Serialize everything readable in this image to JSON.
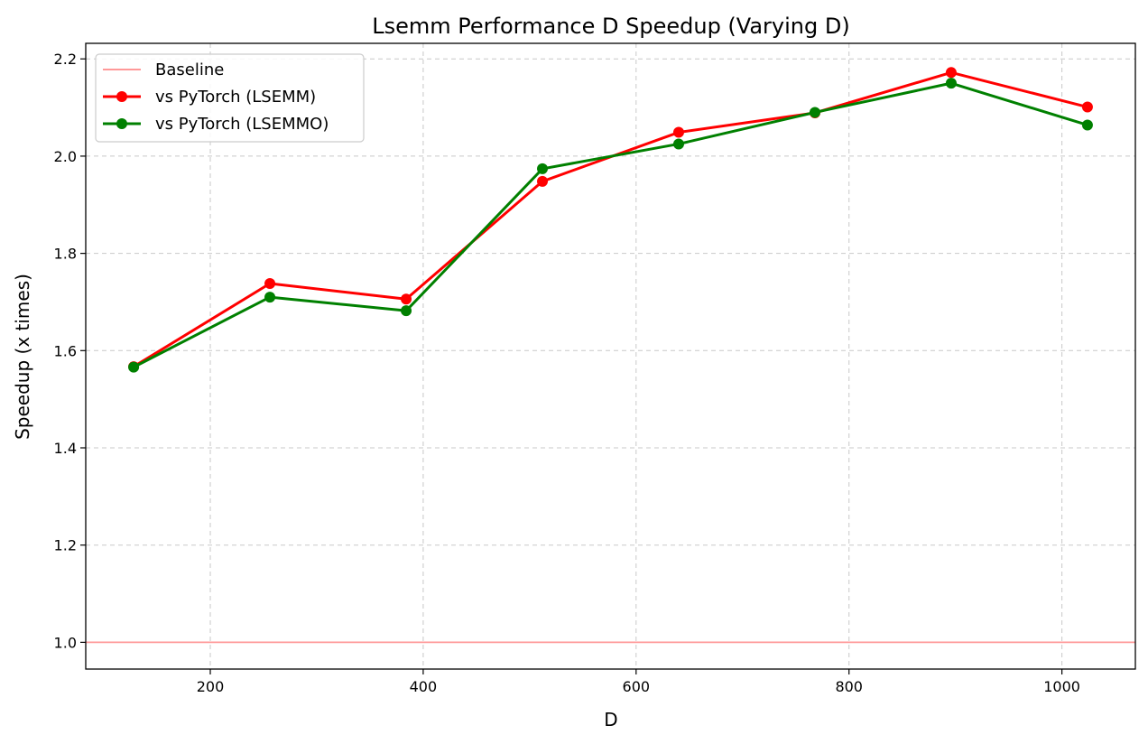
{
  "chart_data": {
    "type": "line",
    "title": "Lsemm Performance D Speedup (Varying D)",
    "xlabel": "D",
    "ylabel": "Speedup (x times)",
    "xlim": [
      83,
      1069
    ],
    "ylim": [
      0.945,
      2.232
    ],
    "xticks": [
      200,
      400,
      600,
      800,
      1000
    ],
    "yticks": [
      1.0,
      1.2,
      1.4,
      1.6,
      1.8,
      2.0,
      2.2
    ],
    "grid": true,
    "legend_position": "top-left",
    "baseline": {
      "name": "Baseline",
      "value": 1.0,
      "color": "#ff9999"
    },
    "x": [
      128,
      256,
      384,
      512,
      640,
      768,
      896,
      1024
    ],
    "series": [
      {
        "name": "vs PyTorch (LSEMM)",
        "color": "#ff0000",
        "values": [
          1.567,
          1.738,
          1.706,
          1.948,
          2.049,
          2.089,
          2.172,
          2.101
        ]
      },
      {
        "name": "vs PyTorch (LSEMMO)",
        "color": "#008000",
        "values": [
          1.566,
          1.71,
          1.682,
          1.974,
          2.025,
          2.09,
          2.15,
          2.064
        ]
      }
    ]
  }
}
